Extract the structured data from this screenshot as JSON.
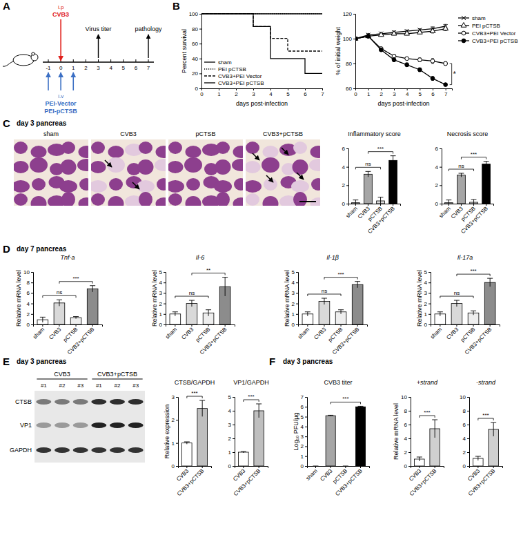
{
  "panel_letters": [
    "A",
    "B",
    "C",
    "D",
    "E",
    "F"
  ],
  "panel_titles": [
    "day 3 pancreas",
    "day 7 pancreas",
    "day 3 pancreas",
    "day 3 pancreas"
  ],
  "diagram": {
    "route_top": "i.p",
    "virus": "CVB3",
    "infection_day": 0,
    "readouts": [
      {
        "day": 3,
        "label": "Virus titer"
      },
      {
        "day": 7,
        "label": "pathology"
      }
    ],
    "days": [
      -1,
      0,
      1,
      2,
      3,
      4,
      5,
      6,
      7
    ],
    "route_bottom": "i.v",
    "injection_days": [
      -1,
      0,
      1
    ],
    "treatments": [
      "PEI-Vector",
      "PEI-pCTSB"
    ]
  },
  "histology": {
    "labels": [
      "sham",
      "CVB3",
      "pCTSB",
      "CVB3+pCTSB"
    ]
  },
  "blot": {
    "groups": [
      "CVB3",
      "CVB3+pCTSB"
    ],
    "lanes": [
      "#1",
      "#2",
      "#3",
      "#1",
      "#2",
      "#3"
    ],
    "rows": [
      "CTSB",
      "VP1",
      "GAPDH"
    ]
  },
  "chart_data": [
    {
      "type": "step",
      "x": [
        0,
        1,
        2,
        3,
        4,
        5,
        6,
        7
      ],
      "xlim": [
        0,
        7
      ],
      "xticks": [
        0,
        1,
        2,
        3,
        4,
        5,
        6,
        7
      ],
      "ylim": [
        0,
        100
      ],
      "yticks": [
        0,
        20,
        40,
        60,
        80,
        100
      ],
      "x_label": "days post-infection",
      "y_label": "Percent survival",
      "legend": "lower left",
      "series": [
        {
          "name": "sham",
          "color": "#000000",
          "line_style": "solid",
          "values": [
            100,
            100,
            100,
            100,
            100,
            100,
            100,
            100
          ]
        },
        {
          "name": "PEI pCTSB",
          "color": "#000000",
          "line_style": "dotted",
          "values": [
            100,
            100,
            100,
            100,
            100,
            100,
            100,
            100
          ]
        },
        {
          "name": "CVB3+PEI Vector",
          "color": "#000000",
          "line_style": "dashed",
          "values": [
            100,
            100,
            100,
            83,
            67,
            50,
            50,
            50
          ]
        },
        {
          "name": "CVB3+PEI pCTSB",
          "color": "#000000",
          "line_style": "solid",
          "values": [
            100,
            100,
            100,
            83,
            40,
            40,
            20,
            20
          ]
        }
      ]
    },
    {
      "type": "line",
      "x": [
        0,
        1,
        2,
        3,
        4,
        5,
        6,
        7
      ],
      "xlim": [
        0,
        7.5
      ],
      "xticks": [
        0,
        1,
        2,
        3,
        4,
        5,
        6,
        7
      ],
      "ylim": [
        60,
        120
      ],
      "yticks": [
        60,
        80,
        100,
        120
      ],
      "x_label": "days post-infection",
      "y_label": "% of initial weight",
      "legend": "right",
      "annotations": [
        {
          "text": "*",
          "x": 7,
          "between": [
            "CVB3+PEI Vector",
            "CVB3+PEI pCTSB"
          ]
        }
      ],
      "series": [
        {
          "name": "sham",
          "color": "#000000",
          "marker": "cross",
          "line_style": "solid",
          "values": [
            100,
            103,
            104,
            105,
            106,
            107,
            108,
            110
          ],
          "errors": [
            0,
            1,
            1,
            1,
            1,
            1,
            1.5,
            1.5
          ]
        },
        {
          "name": "PEI pCTSB",
          "color": "#000000",
          "marker": "open-triangle",
          "line_style": "solid",
          "values": [
            100,
            102,
            103,
            104,
            104,
            105,
            106,
            108
          ],
          "errors": [
            0,
            1,
            1,
            1,
            1,
            1,
            1.5,
            1.5
          ]
        },
        {
          "name": "CVB3+PEI Vector",
          "color": "#000000",
          "marker": "open-circle",
          "line_style": "solid",
          "values": [
            100,
            102,
            92,
            86,
            84,
            83,
            82,
            80
          ],
          "errors": [
            0,
            1,
            1,
            1,
            1,
            1.5,
            2,
            1.5
          ]
        },
        {
          "name": "CVB3+PEI pCTSB",
          "color": "#000000",
          "marker": "circle",
          "line_style": "solid",
          "values": [
            100,
            102,
            91,
            83,
            79,
            75,
            68,
            63
          ],
          "errors": [
            0,
            1,
            1,
            1.5,
            1.5,
            1.5,
            1.5,
            1
          ]
        }
      ]
    },
    {
      "type": "bar",
      "title": "Inflammatory score",
      "categories": [
        "sham",
        "CVB3",
        "pCTSB",
        "CVB3+pCTSB"
      ],
      "values": [
        0.1,
        3.2,
        0.3,
        4.7
      ],
      "errors": [
        0.3,
        0.3,
        0.4,
        0.5
      ],
      "colors": [
        "#d9d9d9",
        "#a6a6a6",
        "#d9d9d9",
        "#000000"
      ],
      "ylim": [
        0,
        6
      ],
      "yticks": [
        0,
        2,
        4,
        6
      ],
      "annotations": [
        {
          "text": "ns",
          "between": [
            "sham",
            "pCTSB"
          ]
        },
        {
          "text": "***",
          "between": [
            "CVB3",
            "CVB3+pCTSB"
          ]
        }
      ]
    },
    {
      "type": "bar",
      "title": "Necrosis score",
      "categories": [
        "sham",
        "CVB3",
        "pCTSB",
        "CVB3+pCTSB"
      ],
      "values": [
        0.1,
        3.1,
        0.15,
        4.3
      ],
      "errors": [
        0.3,
        0.2,
        0.3,
        0.3
      ],
      "colors": [
        "#d9d9d9",
        "#a6a6a6",
        "#d9d9d9",
        "#000000"
      ],
      "ylim": [
        0,
        6
      ],
      "yticks": [
        0,
        2,
        4,
        6
      ],
      "annotations": [
        {
          "text": "ns",
          "between": [
            "sham",
            "pCTSB"
          ]
        },
        {
          "text": "***",
          "between": [
            "CVB3",
            "CVB3+pCTSB"
          ]
        }
      ]
    },
    {
      "type": "bar",
      "title": "Tnf-a",
      "y_label": "Relative mRNA level",
      "categories": [
        "sham",
        "CVB3",
        "pCTSB",
        "CVB3+pCTSB"
      ],
      "values": [
        0.9,
        4.1,
        1.3,
        6.8
      ],
      "errors": [
        0.5,
        0.6,
        0.2,
        0.6
      ],
      "colors": [
        "#ffffff",
        "#d9d9d9",
        "#eeeeee",
        "#8c8c8c"
      ],
      "ylim": [
        0,
        10
      ],
      "yticks": [
        0,
        2,
        4,
        6,
        8,
        10
      ],
      "annotations": [
        {
          "text": "ns",
          "between": [
            "sham",
            "pCTSB"
          ]
        },
        {
          "text": "***",
          "between": [
            "CVB3",
            "CVB3+pCTSB"
          ]
        }
      ]
    },
    {
      "type": "bar",
      "title": "Il-6",
      "y_label": "Relative mRNA level",
      "categories": [
        "sham",
        "CVB3",
        "pCTSB",
        "CVB3+pCTSB"
      ],
      "values": [
        1.0,
        2.0,
        1.1,
        3.6
      ],
      "errors": [
        0.2,
        0.3,
        0.3,
        0.9
      ],
      "colors": [
        "#ffffff",
        "#d9d9d9",
        "#eeeeee",
        "#8c8c8c"
      ],
      "ylim": [
        0,
        5
      ],
      "yticks": [
        0,
        1,
        2,
        3,
        4,
        5
      ],
      "annotations": [
        {
          "text": "ns",
          "between": [
            "sham",
            "pCTSB"
          ]
        },
        {
          "text": "**",
          "between": [
            "CVB3",
            "CVB3+pCTSB"
          ]
        }
      ]
    },
    {
      "type": "bar",
      "title": "Il-1β",
      "y_label": "Relative mRNA level",
      "categories": [
        "sham",
        "CVB3",
        "pCTSB",
        "CVB3+pCTSB"
      ],
      "values": [
        1.0,
        2.2,
        1.2,
        3.8
      ],
      "errors": [
        0.2,
        0.3,
        0.2,
        0.3
      ],
      "colors": [
        "#ffffff",
        "#d9d9d9",
        "#eeeeee",
        "#8c8c8c"
      ],
      "ylim": [
        0,
        5
      ],
      "yticks": [
        0,
        1,
        2,
        3,
        4,
        5
      ],
      "annotations": [
        {
          "text": "ns",
          "between": [
            "sham",
            "pCTSB"
          ]
        },
        {
          "text": "***",
          "between": [
            "CVB3",
            "CVB3+pCTSB"
          ]
        }
      ]
    },
    {
      "type": "bar",
      "title": "Il-17a",
      "y_label": "Relative mRNA level",
      "categories": [
        "sham",
        "CVB3",
        "pCTSB",
        "CVB3+pCTSB"
      ],
      "values": [
        1.0,
        2.0,
        1.1,
        4.0
      ],
      "errors": [
        0.2,
        0.3,
        0.2,
        0.4
      ],
      "colors": [
        "#ffffff",
        "#d9d9d9",
        "#eeeeee",
        "#8c8c8c"
      ],
      "ylim": [
        0,
        5
      ],
      "yticks": [
        0,
        1,
        2,
        3,
        4,
        5
      ],
      "annotations": [
        {
          "text": "ns",
          "between": [
            "sham",
            "pCTSB"
          ]
        },
        {
          "text": "***",
          "between": [
            "CVB3",
            "CVB3+pCTSB"
          ]
        }
      ]
    },
    {
      "type": "bar",
      "title": "CTSB/GAPDH",
      "y_label": "Relative expression",
      "categories": [
        "CVB3",
        "CVB3+pCTSB"
      ],
      "values": [
        1.0,
        2.5
      ],
      "errors": [
        0.05,
        0.35
      ],
      "colors": [
        "#ffffff",
        "#bfbfbf"
      ],
      "ylim": [
        0,
        3
      ],
      "yticks": [
        0,
        1,
        2,
        3
      ],
      "annotations": [
        {
          "text": "***",
          "between": [
            "CVB3",
            "CVB3+pCTSB"
          ]
        }
      ]
    },
    {
      "type": "bar",
      "title": "VP1/GAPDH",
      "categories": [
        "CVB3",
        "CVB3+pCTSB"
      ],
      "values": [
        1.0,
        4.0
      ],
      "errors": [
        0.05,
        0.5
      ],
      "colors": [
        "#ffffff",
        "#bfbfbf"
      ],
      "ylim": [
        0,
        5
      ],
      "yticks": [
        0,
        1,
        2,
        3,
        4,
        5
      ],
      "annotations": [
        {
          "text": "***",
          "between": [
            "CVB3",
            "CVB3+pCTSB"
          ]
        }
      ]
    },
    {
      "type": "bar",
      "title": "CVB3 titer",
      "y_label": "Log₁₀ PFU/μg",
      "categories": [
        "sham",
        "CVB3",
        "pCTSB",
        "CVB3+pCTSB"
      ],
      "values": [
        0,
        5.1,
        0,
        6.0
      ],
      "errors": [
        0,
        0.05,
        0,
        0.06
      ],
      "colors": [
        "#a6a6a6",
        "#a6a6a6",
        "#a6a6a6",
        "#000000"
      ],
      "ylim": [
        0,
        7
      ],
      "yticks": [
        0,
        1,
        2,
        3,
        4,
        5,
        6,
        7
      ],
      "annotations": [
        {
          "text": "***",
          "between": [
            "CVB3",
            "CVB3+pCTSB"
          ]
        }
      ]
    },
    {
      "type": "bar",
      "title": "+strand",
      "y_label": "Relative mRNA level",
      "categories": [
        "CVB3",
        "CVB3+pCTSB"
      ],
      "values": [
        1.0,
        5.4
      ],
      "errors": [
        0.3,
        1.3
      ],
      "colors": [
        "#ffffff",
        "#d0d0d0"
      ],
      "ylim": [
        0,
        10
      ],
      "yticks": [
        0,
        2,
        4,
        6,
        8,
        10
      ],
      "annotations": [
        {
          "text": "***",
          "between": [
            "CVB3",
            "CVB3+pCTSB"
          ]
        }
      ]
    },
    {
      "type": "bar",
      "title": "-strand",
      "categories": [
        "CVB3",
        "CVB3+pCTSB"
      ],
      "values": [
        1.1,
        5.3
      ],
      "errors": [
        0.3,
        1.0
      ],
      "colors": [
        "#ffffff",
        "#d0d0d0"
      ],
      "ylim": [
        0,
        10
      ],
      "yticks": [
        0,
        2,
        4,
        6,
        8,
        10
      ],
      "annotations": [
        {
          "text": "***",
          "between": [
            "CVB3",
            "CVB3+pCTSB"
          ]
        }
      ]
    }
  ]
}
